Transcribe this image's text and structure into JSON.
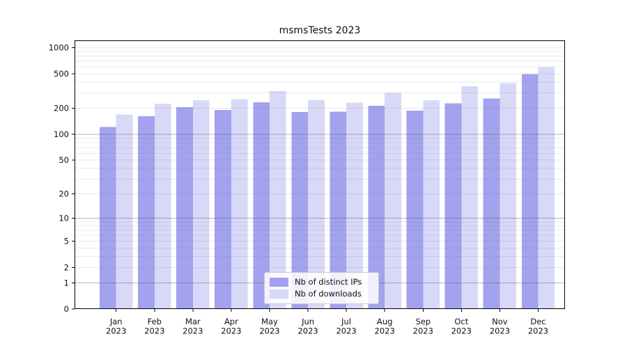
{
  "chart_data": {
    "type": "bar",
    "title": "msmsTests 2023",
    "xlabel": "",
    "ylabel": "",
    "categories": [
      "Jan",
      "Feb",
      "Mar",
      "Apr",
      "May",
      "Jun",
      "Jul",
      "Aug",
      "Sep",
      "Oct",
      "Nov",
      "Dec"
    ],
    "year_label": "2023",
    "series": [
      {
        "name": "Nb of distinct IPs",
        "color": "#a2a2ee",
        "values": [
          122,
          162,
          207,
          191,
          235,
          181,
          182,
          214,
          188,
          229,
          259,
          497
        ]
      },
      {
        "name": "Nb of downloads",
        "color": "#d8d8f8",
        "values": [
          169,
          227,
          249,
          256,
          315,
          251,
          232,
          302,
          247,
          359,
          391,
          593
        ]
      }
    ],
    "yscale": "log1p",
    "y_ticks": [
      0,
      1,
      2,
      5,
      10,
      20,
      50,
      100,
      200,
      500,
      1000
    ],
    "ylim": [
      0,
      1200
    ],
    "grid": "on",
    "major_grid_values": [
      1,
      10,
      100
    ],
    "legend_position": "lower center",
    "axis_color": "#000000",
    "major_grid_color": "#aaaaaa",
    "minor_grid_color": "#e8e8e8",
    "tick_label_color": "#111111"
  }
}
